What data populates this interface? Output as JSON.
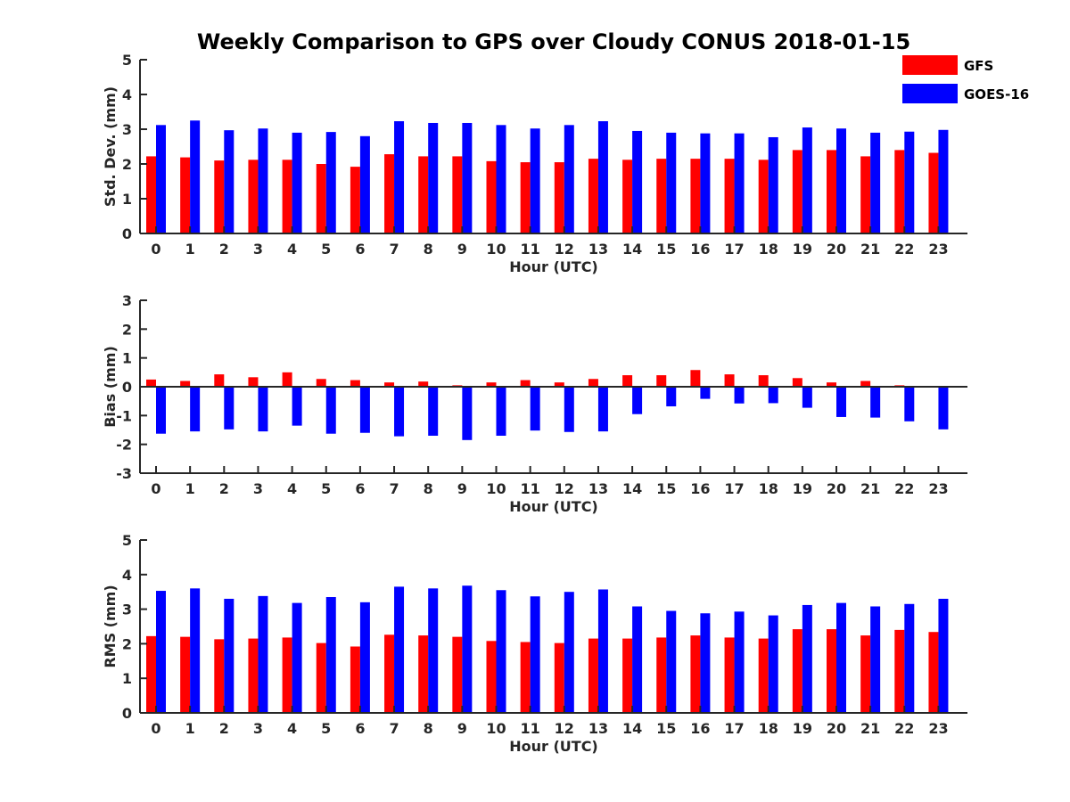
{
  "figure": {
    "title": "Weekly Comparison to GPS over Cloudy CONUS 2018-01-15"
  },
  "legend": {
    "placement": "top-right",
    "entries": [
      {
        "name": "GFS",
        "color": "#ff0000"
      },
      {
        "name": "GOES-16",
        "color": "#0000ff"
      }
    ]
  },
  "chart_data": [
    {
      "type": "bar",
      "xlabel": "Hour (UTC)",
      "ylabel": "Std. Dev. (mm)",
      "ylim": [
        0,
        5
      ],
      "yticks": [
        0,
        1,
        2,
        3,
        4,
        5
      ],
      "categories": [
        "0",
        "1",
        "2",
        "3",
        "4",
        "5",
        "6",
        "7",
        "8",
        "9",
        "10",
        "11",
        "12",
        "13",
        "14",
        "15",
        "16",
        "17",
        "18",
        "19",
        "20",
        "21",
        "22",
        "23"
      ],
      "series": [
        {
          "name": "GFS",
          "color": "#ff0000",
          "values": [
            2.22,
            2.19,
            2.1,
            2.12,
            2.12,
            2.0,
            1.92,
            2.28,
            2.22,
            2.22,
            2.08,
            2.05,
            2.05,
            2.15,
            2.12,
            2.15,
            2.15,
            2.15,
            2.12,
            2.4,
            2.4,
            2.22,
            2.4,
            2.32
          ]
        },
        {
          "name": "GOES-16",
          "color": "#0000ff",
          "values": [
            3.12,
            3.25,
            2.97,
            3.02,
            2.9,
            2.92,
            2.8,
            3.23,
            3.18,
            3.18,
            3.12,
            3.02,
            3.12,
            3.23,
            2.95,
            2.9,
            2.88,
            2.88,
            2.77,
            3.05,
            3.02,
            2.9,
            2.93,
            2.98
          ]
        }
      ]
    },
    {
      "type": "bar",
      "xlabel": "Hour (UTC)",
      "ylabel": "Bias (mm)",
      "ylim": [
        -3,
        3
      ],
      "yticks": [
        -3,
        -2,
        -1,
        0,
        1,
        2,
        3
      ],
      "zero_line": true,
      "categories": [
        "0",
        "1",
        "2",
        "3",
        "4",
        "5",
        "6",
        "7",
        "8",
        "9",
        "10",
        "11",
        "12",
        "13",
        "14",
        "15",
        "16",
        "17",
        "18",
        "19",
        "20",
        "21",
        "22",
        "23"
      ],
      "series": [
        {
          "name": "GFS",
          "color": "#ff0000",
          "values": [
            0.25,
            0.2,
            0.43,
            0.33,
            0.5,
            0.27,
            0.23,
            0.15,
            0.18,
            0.05,
            0.15,
            0.23,
            0.15,
            0.27,
            0.4,
            0.4,
            0.58,
            0.43,
            0.4,
            0.3,
            0.15,
            0.2,
            0.05,
            0.0
          ]
        },
        {
          "name": "GOES-16",
          "color": "#0000ff",
          "values": [
            -1.63,
            -1.55,
            -1.48,
            -1.55,
            -1.35,
            -1.63,
            -1.6,
            -1.72,
            -1.7,
            -1.85,
            -1.7,
            -1.52,
            -1.57,
            -1.55,
            -0.95,
            -0.68,
            -0.42,
            -0.58,
            -0.57,
            -0.73,
            -1.05,
            -1.07,
            -1.2,
            -1.48
          ]
        }
      ]
    },
    {
      "type": "bar",
      "xlabel": "Hour (UTC)",
      "ylabel": "RMS (mm)",
      "ylim": [
        0,
        5
      ],
      "yticks": [
        0,
        1,
        2,
        3,
        4,
        5
      ],
      "categories": [
        "0",
        "1",
        "2",
        "3",
        "4",
        "5",
        "6",
        "7",
        "8",
        "9",
        "10",
        "11",
        "12",
        "13",
        "14",
        "15",
        "16",
        "17",
        "18",
        "19",
        "20",
        "21",
        "22",
        "23"
      ],
      "series": [
        {
          "name": "GFS",
          "color": "#ff0000",
          "values": [
            2.22,
            2.2,
            2.13,
            2.15,
            2.18,
            2.02,
            1.92,
            2.26,
            2.24,
            2.2,
            2.08,
            2.05,
            2.02,
            2.15,
            2.15,
            2.18,
            2.24,
            2.18,
            2.15,
            2.42,
            2.42,
            2.24,
            2.4,
            2.34
          ]
        },
        {
          "name": "GOES-16",
          "color": "#0000ff",
          "values": [
            3.53,
            3.6,
            3.3,
            3.38,
            3.18,
            3.35,
            3.2,
            3.65,
            3.6,
            3.68,
            3.55,
            3.37,
            3.5,
            3.57,
            3.08,
            2.95,
            2.88,
            2.93,
            2.82,
            3.12,
            3.18,
            3.08,
            3.15,
            3.3
          ]
        }
      ]
    }
  ]
}
